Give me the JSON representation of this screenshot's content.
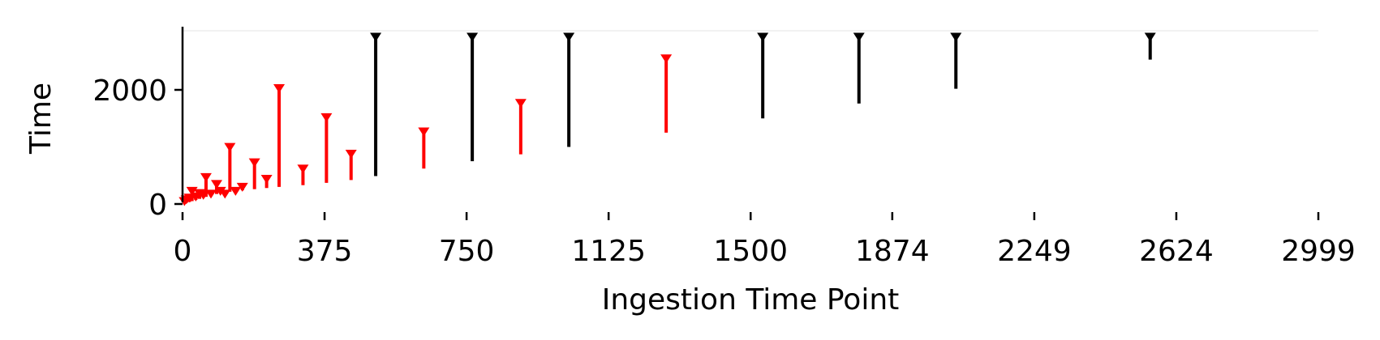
{
  "chart_data": {
    "type": "range-segments",
    "xlabel": "Ingestion Time Point",
    "ylabel": "Time",
    "xlim": [
      0,
      2999
    ],
    "ylim": [
      -100,
      3100
    ],
    "x_ticks": [
      0,
      375,
      750,
      1125,
      1500,
      1874,
      2249,
      2624,
      2999
    ],
    "y_ticks": [
      0,
      2000
    ],
    "colors": {
      "red": "#ff0000",
      "black": "#000000",
      "axis": "#000000"
    },
    "grid": false,
    "series": [
      {
        "color": "red",
        "segments": [
          {
            "x": 5,
            "start": 10,
            "end": 120
          },
          {
            "x": 10,
            "start": 20,
            "end": 150
          },
          {
            "x": 18,
            "start": 35,
            "end": 180
          },
          {
            "x": 25,
            "start": 50,
            "end": 300
          },
          {
            "x": 35,
            "start": 70,
            "end": 200
          },
          {
            "x": 45,
            "start": 90,
            "end": 260
          },
          {
            "x": 55,
            "start": 110,
            "end": 230
          },
          {
            "x": 62,
            "start": 125,
            "end": 540
          },
          {
            "x": 75,
            "start": 150,
            "end": 250
          },
          {
            "x": 90,
            "start": 175,
            "end": 420
          },
          {
            "x": 100,
            "start": 190,
            "end": 300
          },
          {
            "x": 112,
            "start": 200,
            "end": 250
          },
          {
            "x": 125,
            "start": 215,
            "end": 1070
          },
          {
            "x": 140,
            "start": 225,
            "end": 300
          },
          {
            "x": 158,
            "start": 240,
            "end": 370
          },
          {
            "x": 190,
            "start": 260,
            "end": 800
          },
          {
            "x": 222,
            "start": 280,
            "end": 510
          },
          {
            "x": 255,
            "start": 300,
            "end": 2100
          },
          {
            "x": 318,
            "start": 330,
            "end": 690
          },
          {
            "x": 380,
            "start": 370,
            "end": 1590
          },
          {
            "x": 445,
            "start": 420,
            "end": 950
          },
          {
            "x": 637,
            "start": 620,
            "end": 1340
          },
          {
            "x": 893,
            "start": 870,
            "end": 1840
          },
          {
            "x": 1277,
            "start": 1250,
            "end": 2620
          }
        ]
      },
      {
        "color": "black",
        "segments": [
          {
            "x": 510,
            "start": 490,
            "end": 3000
          },
          {
            "x": 765,
            "start": 750,
            "end": 3000
          },
          {
            "x": 1020,
            "start": 1000,
            "end": 3000
          },
          {
            "x": 1532,
            "start": 1500,
            "end": 3000
          },
          {
            "x": 1786,
            "start": 1760,
            "end": 3000
          },
          {
            "x": 2042,
            "start": 2020,
            "end": 3000
          },
          {
            "x": 2555,
            "start": 2530,
            "end": 3000
          }
        ]
      }
    ]
  }
}
